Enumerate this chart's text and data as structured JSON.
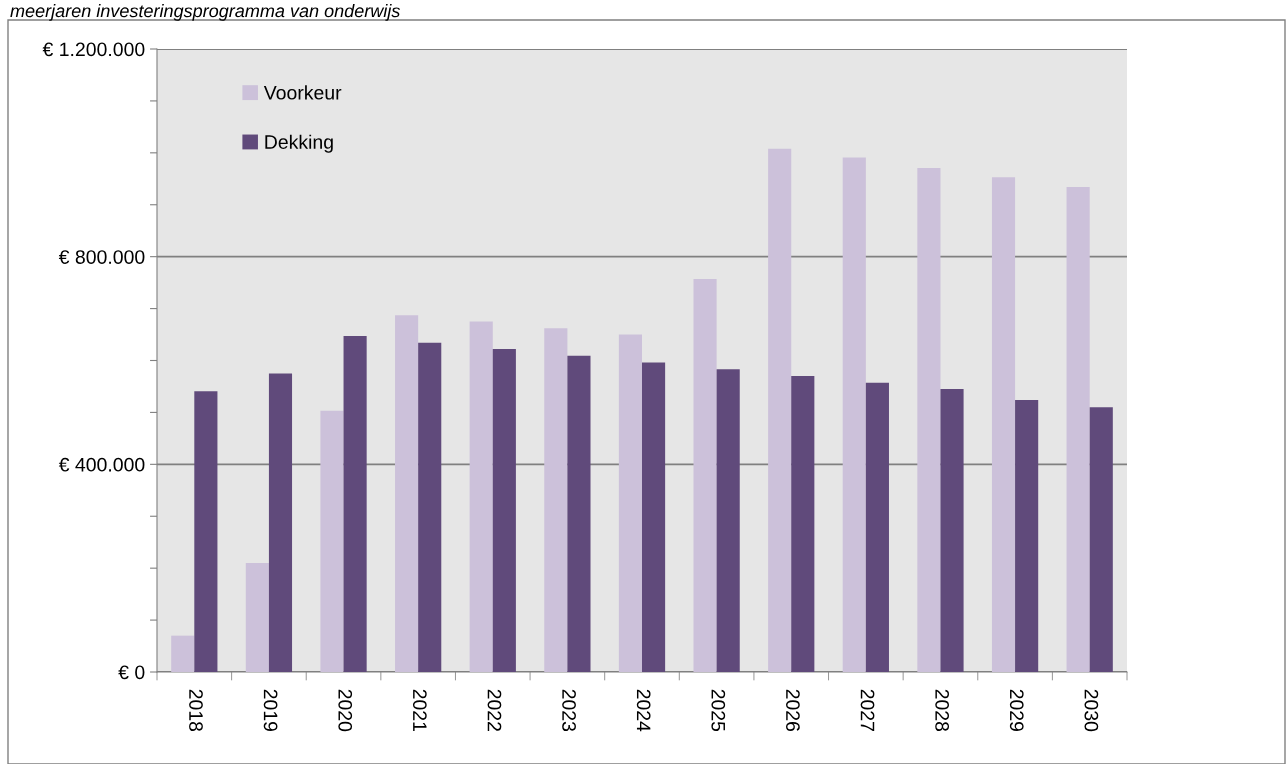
{
  "chart_data": {
    "type": "bar",
    "title": "meerjaren investeringsprogramma van onderwijs",
    "categories": [
      "2018",
      "2019",
      "2020",
      "2021",
      "2022",
      "2023",
      "2024",
      "2025",
      "2026",
      "2027",
      "2028",
      "2029",
      "2030"
    ],
    "series": [
      {
        "name": "Voorkeur",
        "color": "#ccc1da",
        "values": [
          70000,
          210000,
          503000,
          687000,
          675000,
          662000,
          650000,
          757000,
          1008000,
          991000,
          971000,
          953000,
          934000
        ]
      },
      {
        "name": "Dekking",
        "color": "#604a7b",
        "values": [
          541000,
          575000,
          647000,
          634000,
          622000,
          609000,
          596000,
          583000,
          570000,
          557000,
          545000,
          524000,
          510000
        ]
      }
    ],
    "ylim": [
      0,
      1200000
    ],
    "yticks": [
      {
        "value": 0,
        "label": "€ 0"
      },
      {
        "value": 100000,
        "label": null
      },
      {
        "value": 200000,
        "label": null
      },
      {
        "value": 300000,
        "label": null
      },
      {
        "value": 400000,
        "label": "€ 400.000"
      },
      {
        "value": 500000,
        "label": null
      },
      {
        "value": 600000,
        "label": null
      },
      {
        "value": 700000,
        "label": null
      },
      {
        "value": 800000,
        "label": "€ 800.000"
      },
      {
        "value": 900000,
        "label": null
      },
      {
        "value": 1000000,
        "label": null
      },
      {
        "value": 1100000,
        "label": null
      },
      {
        "value": 1200000,
        "label": "€ 1.200.000"
      }
    ],
    "grid": "y",
    "legend": "top left"
  }
}
